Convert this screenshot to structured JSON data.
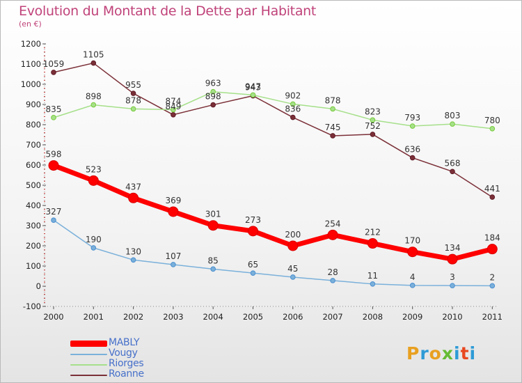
{
  "title": "Evolution du Montant de la Dette par Habitant",
  "unit": "(en €)",
  "logo": "Proxiti",
  "chart_data": {
    "type": "line",
    "title": "Evolution du Montant de la Dette par Habitant",
    "subtitle": "(en €)",
    "xlabel": "",
    "ylabel": "",
    "x": [
      "2000",
      "2001",
      "2002",
      "2003",
      "2004",
      "2005",
      "2006",
      "2007",
      "2008",
      "2009",
      "2010",
      "2011"
    ],
    "ylim": [
      -100,
      1200
    ],
    "yticks": [
      -100,
      0,
      100,
      200,
      300,
      400,
      500,
      600,
      700,
      800,
      900,
      1000,
      1100,
      1200
    ],
    "grid": false,
    "legend_position": "bottom-left",
    "series": [
      {
        "name": "MABLY",
        "color": "#ff0000",
        "emphasis": true,
        "values": [
          598,
          523,
          437,
          369,
          301,
          273,
          200,
          254,
          212,
          170,
          134,
          184
        ]
      },
      {
        "name": "Vougy",
        "color": "#7ab0da",
        "point_color": "#4a8ed0",
        "values": [
          327,
          190,
          130,
          107,
          85,
          65,
          45,
          28,
          11,
          4,
          3,
          2
        ]
      },
      {
        "name": "Riorges",
        "color": "#a6e08a",
        "point_color": "#77cc3a",
        "values": [
          835,
          898,
          878,
          874,
          963,
          947,
          902,
          878,
          823,
          793,
          803,
          780
        ]
      },
      {
        "name": "Roanne",
        "color": "#7b3038",
        "point_color": "#5e1a26",
        "values": [
          1059,
          1105,
          955,
          849,
          898,
          943,
          836,
          745,
          752,
          636,
          568,
          441
        ]
      }
    ]
  }
}
